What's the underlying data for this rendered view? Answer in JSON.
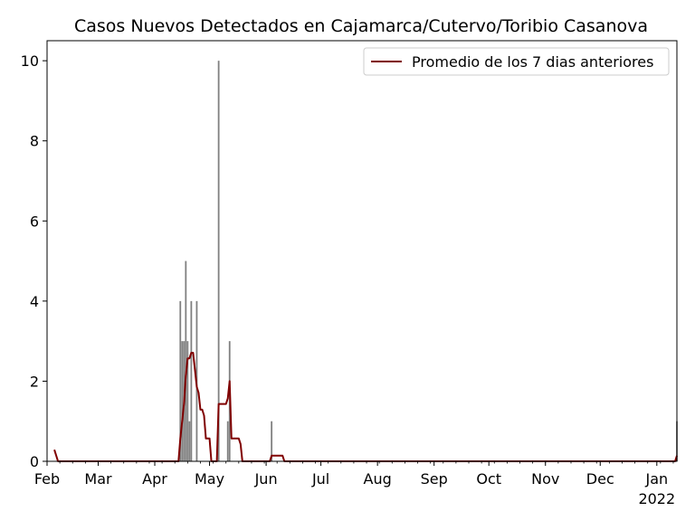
{
  "chart_data": {
    "type": "bar",
    "title": "Casos Nuevos Detectados en Cajamarca/Cutervo/Toribio Casanova",
    "xlabel": "",
    "ylabel": "",
    "x_axis": {
      "start_date": "2021-02-01",
      "end_date": "2022-01-12",
      "ticks": [
        {
          "date": "2021-02-01",
          "label": "Feb"
        },
        {
          "date": "2021-03-01",
          "label": "Mar"
        },
        {
          "date": "2021-04-01",
          "label": "Apr"
        },
        {
          "date": "2021-05-01",
          "label": "May"
        },
        {
          "date": "2021-06-01",
          "label": "Jun"
        },
        {
          "date": "2021-07-01",
          "label": "Jul"
        },
        {
          "date": "2021-08-01",
          "label": "Aug"
        },
        {
          "date": "2021-09-01",
          "label": "Sep"
        },
        {
          "date": "2021-10-01",
          "label": "Oct"
        },
        {
          "date": "2021-11-01",
          "label": "Nov"
        },
        {
          "date": "2021-12-01",
          "label": "Dec"
        },
        {
          "date": "2022-01-01",
          "label": "Jan",
          "sublabel": "2022"
        }
      ]
    },
    "y_axis": {
      "ylim": [
        0,
        10.5
      ],
      "ticks": [
        0,
        2,
        4,
        6,
        8,
        10
      ]
    },
    "grid": false,
    "legend": {
      "placement": "top-right",
      "entries": [
        "Promedio de los 7 dias anteriores"
      ]
    },
    "colors": {
      "bars": "#808080",
      "line": "#800000"
    },
    "series": [
      {
        "type": "bar",
        "points": [
          {
            "date": "2021-04-15",
            "value": 4
          },
          {
            "date": "2021-04-16",
            "value": 3
          },
          {
            "date": "2021-04-17",
            "value": 3
          },
          {
            "date": "2021-04-18",
            "value": 5
          },
          {
            "date": "2021-04-19",
            "value": 3
          },
          {
            "date": "2021-04-20",
            "value": 1
          },
          {
            "date": "2021-04-21",
            "value": 4
          },
          {
            "date": "2021-04-24",
            "value": 4
          },
          {
            "date": "2021-05-06",
            "value": 10
          },
          {
            "date": "2021-05-11",
            "value": 1
          },
          {
            "date": "2021-05-12",
            "value": 3
          },
          {
            "date": "2021-06-04",
            "value": 1
          },
          {
            "date": "2022-01-12",
            "value": 1
          }
        ]
      },
      {
        "type": "line",
        "name": "Promedio de los 7 dias anteriores",
        "points": [
          {
            "date": "2021-02-05",
            "value": 0.29
          },
          {
            "date": "2021-02-07",
            "value": 0
          },
          {
            "date": "2021-04-14",
            "value": 0
          },
          {
            "date": "2021-04-15",
            "value": 0.57
          },
          {
            "date": "2021-04-16",
            "value": 1.0
          },
          {
            "date": "2021-04-17",
            "value": 1.43
          },
          {
            "date": "2021-04-18",
            "value": 2.14
          },
          {
            "date": "2021-04-19",
            "value": 2.57
          },
          {
            "date": "2021-04-20",
            "value": 2.57
          },
          {
            "date": "2021-04-21",
            "value": 2.71
          },
          {
            "date": "2021-04-22",
            "value": 2.71
          },
          {
            "date": "2021-04-23",
            "value": 2.29
          },
          {
            "date": "2021-04-24",
            "value": 1.86
          },
          {
            "date": "2021-04-25",
            "value": 1.71
          },
          {
            "date": "2021-04-26",
            "value": 1.29
          },
          {
            "date": "2021-04-27",
            "value": 1.29
          },
          {
            "date": "2021-04-28",
            "value": 1.14
          },
          {
            "date": "2021-04-29",
            "value": 0.57
          },
          {
            "date": "2021-04-30",
            "value": 0.57
          },
          {
            "date": "2021-05-01",
            "value": 0.57
          },
          {
            "date": "2021-05-02",
            "value": 0
          },
          {
            "date": "2021-05-05",
            "value": 0
          },
          {
            "date": "2021-05-06",
            "value": 1.43
          },
          {
            "date": "2021-05-10",
            "value": 1.43
          },
          {
            "date": "2021-05-11",
            "value": 1.57
          },
          {
            "date": "2021-05-12",
            "value": 2.0
          },
          {
            "date": "2021-05-13",
            "value": 0.57
          },
          {
            "date": "2021-05-17",
            "value": 0.57
          },
          {
            "date": "2021-05-18",
            "value": 0.43
          },
          {
            "date": "2021-05-19",
            "value": 0
          },
          {
            "date": "2021-06-03",
            "value": 0
          },
          {
            "date": "2021-06-04",
            "value": 0.14
          },
          {
            "date": "2021-06-10",
            "value": 0.14
          },
          {
            "date": "2021-06-11",
            "value": 0
          },
          {
            "date": "2022-01-11",
            "value": 0
          },
          {
            "date": "2022-01-12",
            "value": 0.14
          }
        ]
      }
    ]
  }
}
